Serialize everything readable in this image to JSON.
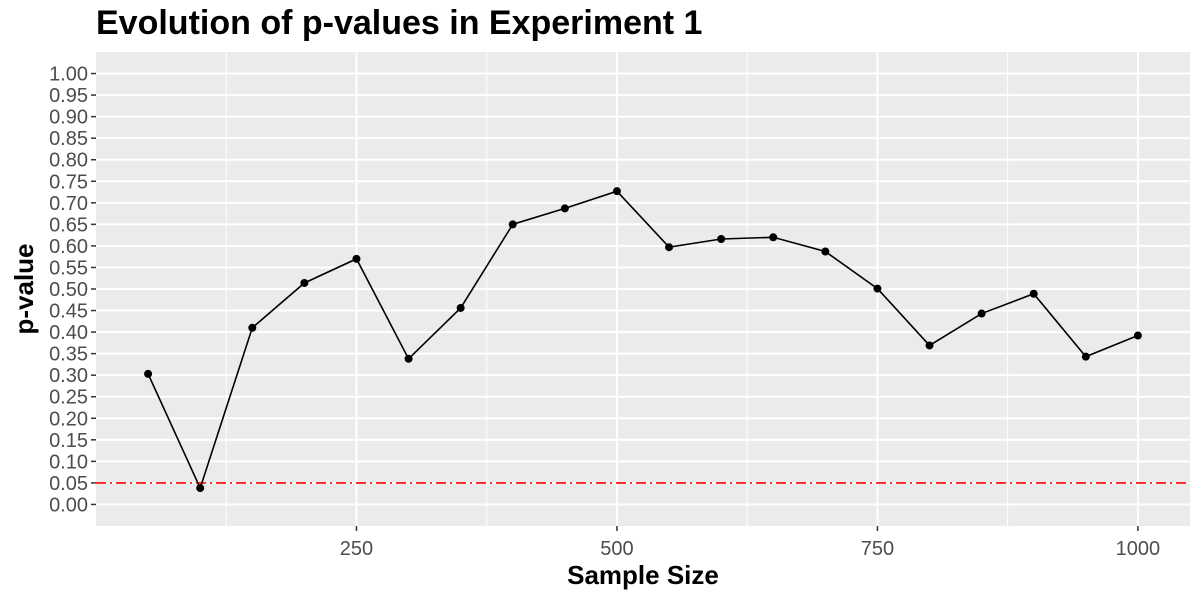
{
  "chart_data": {
    "type": "line",
    "title": "Evolution of p-values in Experiment 1",
    "xlabel": "Sample Size",
    "ylabel": "p-value",
    "xlim": [
      0,
      1050
    ],
    "ylim": [
      -0.05,
      1.05
    ],
    "x_ticks": [
      250,
      500,
      750,
      1000
    ],
    "x_minor_ticks": [
      125,
      375,
      625,
      875
    ],
    "y_ticks": [
      0.0,
      0.05,
      0.1,
      0.15,
      0.2,
      0.25,
      0.3,
      0.35,
      0.4,
      0.45,
      0.5,
      0.55,
      0.6,
      0.65,
      0.7,
      0.75,
      0.8,
      0.85,
      0.9,
      0.95,
      1.0
    ],
    "y_tick_labels": [
      "0.00",
      "0.05",
      "0.10",
      "0.15",
      "0.20",
      "0.25",
      "0.30",
      "0.35",
      "0.40",
      "0.45",
      "0.50",
      "0.55",
      "0.60",
      "0.65",
      "0.70",
      "0.75",
      "0.80",
      "0.85",
      "0.90",
      "0.95",
      "1.00"
    ],
    "series": [
      {
        "x": [
          50,
          100,
          150,
          200,
          250,
          300,
          350,
          400,
          450,
          500,
          550,
          600,
          650,
          700,
          750,
          800,
          850,
          900,
          950,
          1000
        ],
        "y": [
          0.303,
          0.038,
          0.41,
          0.514,
          0.57,
          0.338,
          0.456,
          0.65,
          0.687,
          0.727,
          0.597,
          0.616,
          0.62,
          0.587,
          0.501,
          0.369,
          0.443,
          0.489,
          0.343,
          0.392
        ],
        "color": "#000000"
      }
    ],
    "reference_line": {
      "y": 0.05,
      "color": "#ff0000",
      "style": "dashdot"
    },
    "grid": true,
    "panel_background": "#ebebeb",
    "grid_color": "#ffffff"
  }
}
